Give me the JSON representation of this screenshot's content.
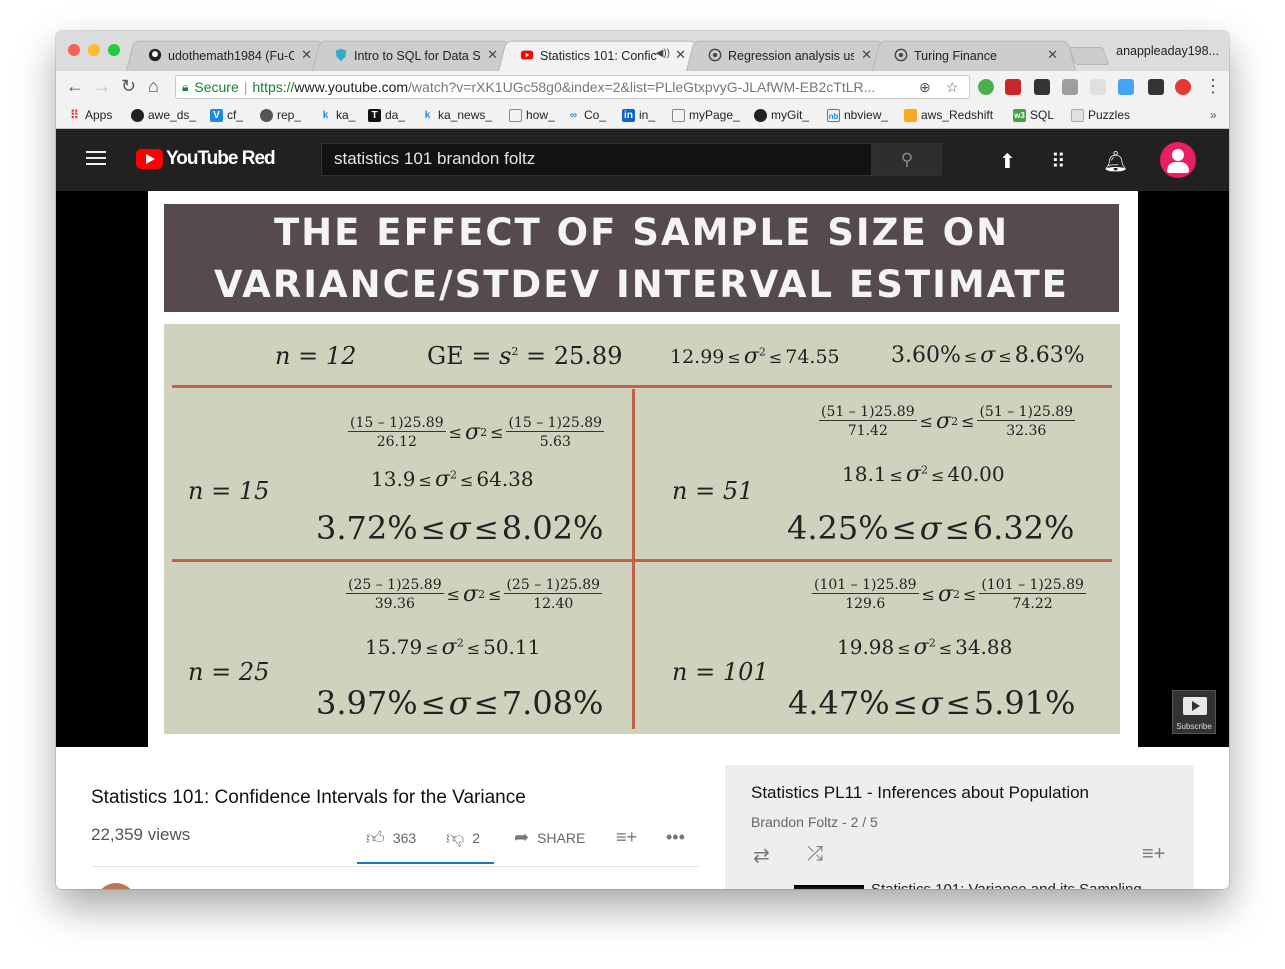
{
  "browser": {
    "tabs": [
      {
        "title": "udothemath1984 (Fu-C",
        "favicon": "github-icon"
      },
      {
        "title": "Intro to SQL for Data Sc",
        "favicon": "shield-icon"
      },
      {
        "title": "Statistics 101: Confic",
        "favicon": "youtube-icon",
        "active": true
      },
      {
        "title": "Regression analysis usi",
        "favicon": "globe-icon"
      },
      {
        "title": "Turing Finance",
        "favicon": "globe-icon"
      }
    ],
    "profile_name": "anappleaday198...",
    "secure_label": "Secure",
    "url_scheme": "https://",
    "url_host": "www.youtube.com",
    "url_rest": "/watch?v=rXK1UGc58g0&index=2&list=PLleGtxpvyG-JLAfWM-EB2cTtLR...",
    "bookmarks": [
      "Apps",
      "awe_ds_",
      "cf_",
      "rep_",
      "ka_",
      "da_",
      "ka_news_",
      "how_",
      "Co_",
      "in_",
      "myPage_",
      "myGit_",
      "nbview_",
      "aws_Redshift",
      "SQL",
      "Puzzles"
    ],
    "bookmarks_overflow": "»"
  },
  "youtube": {
    "logo_text": "YouTube Red",
    "search_value": "statistics 101 brandon foltz"
  },
  "slide": {
    "title_line1": "THE EFFECT OF SAMPLE SIZE ON",
    "title_line2": "VARIANCE/STDEV INTERVAL ESTIMATE",
    "top": {
      "n": "n = 12",
      "ge_prefix": "GE = ",
      "ge_s": "s",
      "ge_exp": "2",
      "ge_value": " = 25.89",
      "var_low": "12.99",
      "var_high": "74.55",
      "sd_low": "3.60%",
      "sd_high": "8.63%"
    },
    "cells": [
      {
        "n": "n = 15",
        "frac_num_l": "(15 – 1)25.89",
        "frac_den_l": "26.12",
        "frac_num_r": "(15 – 1)25.89",
        "frac_den_r": "5.63",
        "var_low": "13.9",
        "var_high": "64.38",
        "sd_low": "3.72%",
        "sd_high": "8.02%"
      },
      {
        "n": "n = 51",
        "frac_num_l": "(51 – 1)25.89",
        "frac_den_l": "71.42",
        "frac_num_r": "(51 – 1)25.89",
        "frac_den_r": "32.36",
        "var_low": "18.1",
        "var_high": "40.00",
        "sd_low": "4.25%",
        "sd_high": "6.32%"
      },
      {
        "n": "n = 25",
        "frac_num_l": "(25 – 1)25.89",
        "frac_den_l": "39.36",
        "frac_num_r": "(25 – 1)25.89",
        "frac_den_r": "12.40",
        "var_low": "15.79",
        "var_high": "50.11",
        "sd_low": "3.97%",
        "sd_high": "7.08%"
      },
      {
        "n": "n = 101",
        "frac_num_l": "(101 – 1)25.89",
        "frac_den_l": "129.6",
        "frac_num_r": "(101 – 1)25.89",
        "frac_den_r": "74.22",
        "var_low": "19.98",
        "var_high": "34.88",
        "sd_low": "4.47%",
        "sd_high": "5.91%"
      }
    ],
    "subscribe_label": "Subscribe"
  },
  "video": {
    "title": "Statistics 101: Confidence Intervals for the Variance",
    "views": "22,359 views",
    "likes": "363",
    "dislikes": "2",
    "share_label": "SHARE"
  },
  "playlist": {
    "title": "Statistics PL11 - Inferences about Population",
    "subtitle": "Brandon Foltz - 2 / 5",
    "next_title": "Statistics 101: Variance and its Sampling"
  },
  "colors": {
    "youtube_red": "#ff0000",
    "slide_title_bg": "#564b4c",
    "slide_body_bg": "#cfd2bd",
    "slide_rule": "#c0614e",
    "avatar": "#e91e63",
    "active_underline": "#167ac6"
  }
}
